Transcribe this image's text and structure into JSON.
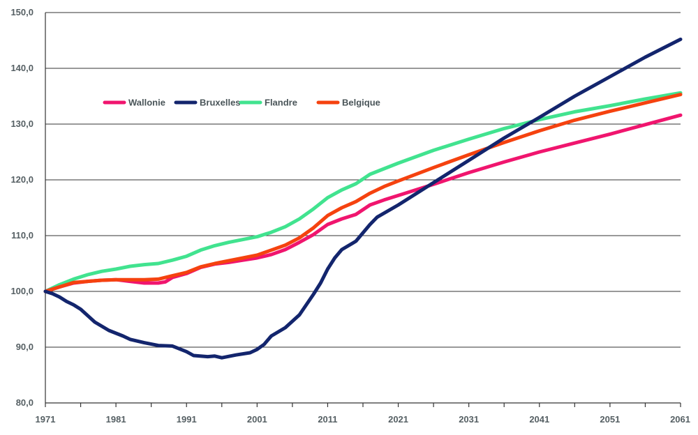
{
  "chart_data": {
    "type": "line",
    "title": "",
    "xlabel": "",
    "ylabel": "",
    "xlim": [
      1971,
      2061
    ],
    "ylim": [
      80,
      150
    ],
    "x_ticks": [
      1971,
      1981,
      1991,
      2001,
      2011,
      2021,
      2031,
      2041,
      2051,
      2061
    ],
    "x_tick_labels": [
      "1971",
      "1981",
      "1991",
      "2001",
      "2011",
      "2021",
      "2031",
      "2041",
      "2051",
      "2061"
    ],
    "y_ticks": [
      80,
      90,
      100,
      110,
      120,
      130,
      140,
      150
    ],
    "y_tick_labels": [
      "80,0",
      "90,0",
      "100,0",
      "110,0",
      "120,0",
      "130,0",
      "140,0",
      "150,0"
    ],
    "grid": "horizontal",
    "legend_position": "top-left",
    "series": [
      {
        "name": "Wallonie",
        "color": "#f0156e",
        "points": [
          [
            1971,
            100.0
          ],
          [
            1973,
            100.8
          ],
          [
            1975,
            101.5
          ],
          [
            1977,
            101.8
          ],
          [
            1979,
            102.0
          ],
          [
            1981,
            102.1
          ],
          [
            1983,
            101.8
          ],
          [
            1985,
            101.5
          ],
          [
            1987,
            101.5
          ],
          [
            1988,
            101.7
          ],
          [
            1989,
            102.5
          ],
          [
            1991,
            103.2
          ],
          [
            1993,
            104.3
          ],
          [
            1995,
            104.9
          ],
          [
            1997,
            105.2
          ],
          [
            1999,
            105.6
          ],
          [
            2001,
            106.0
          ],
          [
            2003,
            106.6
          ],
          [
            2005,
            107.5
          ],
          [
            2007,
            108.8
          ],
          [
            2009,
            110.2
          ],
          [
            2011,
            112.0
          ],
          [
            2013,
            113.0
          ],
          [
            2015,
            113.8
          ],
          [
            2017,
            115.5
          ],
          [
            2019,
            116.4
          ],
          [
            2021,
            117.2
          ],
          [
            2026,
            119.2
          ],
          [
            2031,
            121.3
          ],
          [
            2036,
            123.2
          ],
          [
            2041,
            125.0
          ],
          [
            2046,
            126.6
          ],
          [
            2051,
            128.2
          ],
          [
            2056,
            129.9
          ],
          [
            2061,
            131.6
          ]
        ]
      },
      {
        "name": "Bruxelles",
        "color": "#13256d",
        "points": [
          [
            1971,
            100.0
          ],
          [
            1972,
            99.6
          ],
          [
            1973,
            99.0
          ],
          [
            1974,
            98.2
          ],
          [
            1975,
            97.6
          ],
          [
            1976,
            96.8
          ],
          [
            1978,
            94.5
          ],
          [
            1980,
            93.0
          ],
          [
            1982,
            92.0
          ],
          [
            1983,
            91.4
          ],
          [
            1985,
            90.8
          ],
          [
            1987,
            90.3
          ],
          [
            1989,
            90.2
          ],
          [
            1991,
            89.2
          ],
          [
            1992,
            88.5
          ],
          [
            1994,
            88.3
          ],
          [
            1995,
            88.4
          ],
          [
            1996,
            88.1
          ],
          [
            1998,
            88.6
          ],
          [
            2000,
            89.0
          ],
          [
            2001,
            89.6
          ],
          [
            2002,
            90.5
          ],
          [
            2003,
            92.0
          ],
          [
            2005,
            93.5
          ],
          [
            2007,
            95.8
          ],
          [
            2009,
            99.5
          ],
          [
            2010,
            101.5
          ],
          [
            2011,
            104.0
          ],
          [
            2012,
            106.0
          ],
          [
            2013,
            107.5
          ],
          [
            2015,
            109.0
          ],
          [
            2016,
            110.5
          ],
          [
            2017,
            112.0
          ],
          [
            2018,
            113.3
          ],
          [
            2021,
            115.5
          ],
          [
            2026,
            119.5
          ],
          [
            2031,
            123.5
          ],
          [
            2036,
            127.5
          ],
          [
            2041,
            131.2
          ],
          [
            2046,
            135.0
          ],
          [
            2051,
            138.5
          ],
          [
            2056,
            142.0
          ],
          [
            2061,
            145.2
          ]
        ]
      },
      {
        "name": "Flandre",
        "color": "#41e38f",
        "points": [
          [
            1971,
            100.0
          ],
          [
            1973,
            101.2
          ],
          [
            1975,
            102.2
          ],
          [
            1977,
            103.0
          ],
          [
            1979,
            103.6
          ],
          [
            1981,
            104.0
          ],
          [
            1983,
            104.5
          ],
          [
            1985,
            104.8
          ],
          [
            1987,
            105.0
          ],
          [
            1989,
            105.6
          ],
          [
            1991,
            106.3
          ],
          [
            1993,
            107.4
          ],
          [
            1995,
            108.2
          ],
          [
            1997,
            108.8
          ],
          [
            1999,
            109.3
          ],
          [
            2001,
            109.8
          ],
          [
            2003,
            110.6
          ],
          [
            2005,
            111.6
          ],
          [
            2007,
            113.0
          ],
          [
            2009,
            114.8
          ],
          [
            2011,
            116.8
          ],
          [
            2013,
            118.2
          ],
          [
            2015,
            119.3
          ],
          [
            2017,
            121.0
          ],
          [
            2019,
            122.0
          ],
          [
            2021,
            123.0
          ],
          [
            2026,
            125.3
          ],
          [
            2031,
            127.3
          ],
          [
            2036,
            129.2
          ],
          [
            2041,
            130.8
          ],
          [
            2046,
            132.2
          ],
          [
            2051,
            133.3
          ],
          [
            2056,
            134.5
          ],
          [
            2061,
            135.6
          ]
        ]
      },
      {
        "name": "Belgique",
        "color": "#f5420f",
        "points": [
          [
            1971,
            100.0
          ],
          [
            1973,
            100.8
          ],
          [
            1975,
            101.6
          ],
          [
            1977,
            101.8
          ],
          [
            1979,
            102.0
          ],
          [
            1981,
            102.1
          ],
          [
            1983,
            102.1
          ],
          [
            1985,
            102.1
          ],
          [
            1987,
            102.2
          ],
          [
            1989,
            102.8
          ],
          [
            1991,
            103.4
          ],
          [
            1993,
            104.4
          ],
          [
            1995,
            105.0
          ],
          [
            1997,
            105.5
          ],
          [
            1999,
            106.0
          ],
          [
            2001,
            106.5
          ],
          [
            2003,
            107.4
          ],
          [
            2005,
            108.3
          ],
          [
            2007,
            109.6
          ],
          [
            2009,
            111.4
          ],
          [
            2011,
            113.6
          ],
          [
            2013,
            115.0
          ],
          [
            2015,
            116.1
          ],
          [
            2017,
            117.6
          ],
          [
            2019,
            118.8
          ],
          [
            2021,
            119.8
          ],
          [
            2026,
            122.2
          ],
          [
            2031,
            124.5
          ],
          [
            2036,
            126.7
          ],
          [
            2041,
            128.8
          ],
          [
            2046,
            130.7
          ],
          [
            2051,
            132.3
          ],
          [
            2056,
            133.8
          ],
          [
            2061,
            135.3
          ]
        ]
      }
    ]
  }
}
